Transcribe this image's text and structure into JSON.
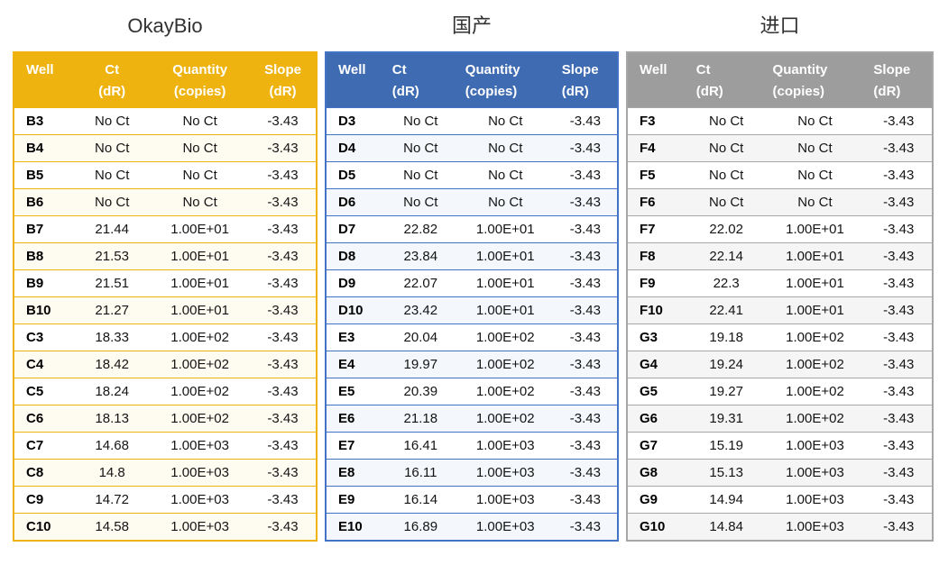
{
  "page": {
    "background": "#FFFFFF",
    "title_color": "#323232"
  },
  "tables": [
    {
      "title": "OkayBio",
      "header_align": "center",
      "colors": {
        "header_bg": "#EFB310",
        "header_text": "#FFFFFF",
        "border": "#EFB310",
        "band": "#FEFBF1"
      },
      "columns": [
        {
          "label": "Well",
          "unit": ""
        },
        {
          "label": "Ct",
          "unit": "(dR)"
        },
        {
          "label": "Quantity",
          "unit": "(copies)"
        },
        {
          "label": "Slope",
          "unit": "(dR)"
        }
      ],
      "rows": [
        [
          "B3",
          "No Ct",
          "No Ct",
          "-3.43"
        ],
        [
          "B4",
          "No Ct",
          "No Ct",
          "-3.43"
        ],
        [
          "B5",
          "No Ct",
          "No Ct",
          "-3.43"
        ],
        [
          "B6",
          "No Ct",
          "No Ct",
          "-3.43"
        ],
        [
          "B7",
          "21.44",
          "1.00E+01",
          "-3.43"
        ],
        [
          "B8",
          "21.53",
          "1.00E+01",
          "-3.43"
        ],
        [
          "B9",
          "21.51",
          "1.00E+01",
          "-3.43"
        ],
        [
          "B10",
          "21.27",
          "1.00E+01",
          "-3.43"
        ],
        [
          "C3",
          "18.33",
          "1.00E+02",
          "-3.43"
        ],
        [
          "C4",
          "18.42",
          "1.00E+02",
          "-3.43"
        ],
        [
          "C5",
          "18.24",
          "1.00E+02",
          "-3.43"
        ],
        [
          "C6",
          "18.13",
          "1.00E+02",
          "-3.43"
        ],
        [
          "C7",
          "14.68",
          "1.00E+03",
          "-3.43"
        ],
        [
          "C8",
          "14.8",
          "1.00E+03",
          "-3.43"
        ],
        [
          "C9",
          "14.72",
          "1.00E+03",
          "-3.43"
        ],
        [
          "C10",
          "14.58",
          "1.00E+03",
          "-3.43"
        ]
      ]
    },
    {
      "title": "国产",
      "header_align": "left",
      "colors": {
        "header_bg": "#3F6BB3",
        "header_text": "#FFFFFF",
        "border": "#4472C4",
        "band": "#F4F7FB"
      },
      "columns": [
        {
          "label": "Well",
          "unit": ""
        },
        {
          "label": "Ct",
          "unit": "(dR)"
        },
        {
          "label": "Quantity",
          "unit": "(copies)"
        },
        {
          "label": "Slope",
          "unit": "(dR)"
        }
      ],
      "rows": [
        [
          "D3",
          "No Ct",
          "No Ct",
          "-3.43"
        ],
        [
          "D4",
          "No Ct",
          "No Ct",
          "-3.43"
        ],
        [
          "D5",
          "No Ct",
          "No Ct",
          "-3.43"
        ],
        [
          "D6",
          "No Ct",
          "No Ct",
          "-3.43"
        ],
        [
          "D7",
          "22.82",
          "1.00E+01",
          "-3.43"
        ],
        [
          "D8",
          "23.84",
          "1.00E+01",
          "-3.43"
        ],
        [
          "D9",
          "22.07",
          "1.00E+01",
          "-3.43"
        ],
        [
          "D10",
          "23.42",
          "1.00E+01",
          "-3.43"
        ],
        [
          "E3",
          "20.04",
          "1.00E+02",
          "-3.43"
        ],
        [
          "E4",
          "19.97",
          "1.00E+02",
          "-3.43"
        ],
        [
          "E5",
          "20.39",
          "1.00E+02",
          "-3.43"
        ],
        [
          "E6",
          "21.18",
          "1.00E+02",
          "-3.43"
        ],
        [
          "E7",
          "16.41",
          "1.00E+03",
          "-3.43"
        ],
        [
          "E8",
          "16.11",
          "1.00E+03",
          "-3.43"
        ],
        [
          "E9",
          "16.14",
          "1.00E+03",
          "-3.43"
        ],
        [
          "E10",
          "16.89",
          "1.00E+03",
          "-3.43"
        ]
      ]
    },
    {
      "title": "进口",
      "header_align": "left",
      "colors": {
        "header_bg": "#9D9D9D",
        "header_text": "#FFFFFF",
        "border": "#A6A6A6",
        "band": "#F5F5F5"
      },
      "columns": [
        {
          "label": "Well",
          "unit": ""
        },
        {
          "label": "Ct",
          "unit": "(dR)"
        },
        {
          "label": "Quantity",
          "unit": "(copies)"
        },
        {
          "label": "Slope",
          "unit": "(dR)"
        }
      ],
      "rows": [
        [
          "F3",
          "No Ct",
          "No Ct",
          "-3.43"
        ],
        [
          "F4",
          "No Ct",
          "No Ct",
          "-3.43"
        ],
        [
          "F5",
          "No Ct",
          "No Ct",
          "-3.43"
        ],
        [
          "F6",
          "No Ct",
          "No Ct",
          "-3.43"
        ],
        [
          "F7",
          "22.02",
          "1.00E+01",
          "-3.43"
        ],
        [
          "F8",
          "22.14",
          "1.00E+01",
          "-3.43"
        ],
        [
          "F9",
          "22.3",
          "1.00E+01",
          "-3.43"
        ],
        [
          "F10",
          "22.41",
          "1.00E+01",
          "-3.43"
        ],
        [
          "G3",
          "19.18",
          "1.00E+02",
          "-3.43"
        ],
        [
          "G4",
          "19.24",
          "1.00E+02",
          "-3.43"
        ],
        [
          "G5",
          "19.27",
          "1.00E+02",
          "-3.43"
        ],
        [
          "G6",
          "19.31",
          "1.00E+02",
          "-3.43"
        ],
        [
          "G7",
          "15.19",
          "1.00E+03",
          "-3.43"
        ],
        [
          "G8",
          "15.13",
          "1.00E+03",
          "-3.43"
        ],
        [
          "G9",
          "14.94",
          "1.00E+03",
          "-3.43"
        ],
        [
          "G10",
          "14.84",
          "1.00E+03",
          "-3.43"
        ]
      ]
    }
  ]
}
